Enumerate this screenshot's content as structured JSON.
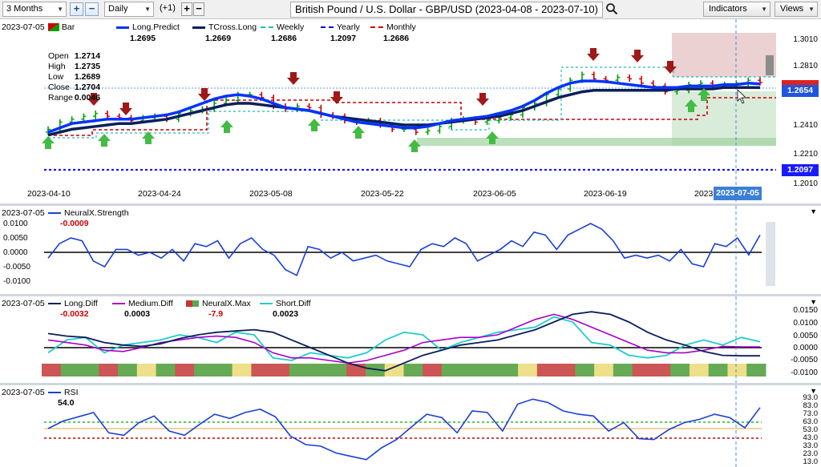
{
  "toolbar": {
    "period": "3 Months",
    "interval": "Daily",
    "offset": "(+1)",
    "title": "British Pound / U.S. Dollar - GBP/USD (2023-04-08 - 2023-07-10)",
    "indicators_label": "Indicators",
    "views_label": "Views"
  },
  "main_pane": {
    "date": "2023-07-05",
    "legend": [
      {
        "name": "Bar",
        "value": "",
        "color": "#00a000"
      },
      {
        "name": "Long.Predict",
        "value": "1.2695",
        "color": "#0033ff"
      },
      {
        "name": "TCross.Long",
        "value": "1.2669",
        "color": "#0a1f5c"
      },
      {
        "name": "Weekly",
        "value": "1.2686",
        "color": "#22bbbb"
      },
      {
        "name": "Yearly",
        "value": "1.2097",
        "color": "#0000cc"
      },
      {
        "name": "Monthly",
        "value": "1.2686",
        "color": "#cc0000"
      }
    ],
    "ohlc": [
      {
        "label": "Open",
        "value": "1.2714"
      },
      {
        "label": "High",
        "value": "1.2735"
      },
      {
        "label": "Low",
        "value": "1.2689"
      },
      {
        "label": "Close",
        "value": "1.2704"
      },
      {
        "label": "Range",
        "value": "0.0046"
      }
    ],
    "y_ticks": [
      "1.3010",
      "1.2810",
      "1.2410",
      "1.2210",
      "1.2010"
    ],
    "price_tags": [
      {
        "label": "1.2654",
        "color": "#2255dd"
      },
      {
        "label": "1.2097",
        "color": "#1a1aff"
      }
    ],
    "x_ticks": [
      "2023-04-10",
      "2023-04-24",
      "2023-05-08",
      "2023-05-22",
      "2023-06-05",
      "2023-06-19",
      "2023-",
      "2023-07-05"
    ]
  },
  "strength_pane": {
    "date": "2023-07-05",
    "name": "NeuralX.Strength",
    "value": "-0.0009",
    "y_ticks": [
      "0.0100",
      "0.0050",
      "0.0000",
      "-0.0050",
      "-0.0100"
    ]
  },
  "diff_pane": {
    "date": "2023-07-05",
    "legend": [
      {
        "name": "Long.Diff",
        "value": "-0.0032",
        "color": "#0a1f5c"
      },
      {
        "name": "Medium.Diff",
        "value": "0.0003",
        "color": "#aa00cc"
      },
      {
        "name": "NeuralX.Max",
        "value": "-7.9",
        "color": "#cc3333"
      },
      {
        "name": "Short.Diff",
        "value": "0.0023",
        "color": "#22cccc"
      }
    ],
    "y_ticks": [
      "0.0150",
      "0.0100",
      "0.0050",
      "0.0000",
      "-0.0050",
      "-0.0100"
    ]
  },
  "rsi_pane": {
    "date": "2023-07-05",
    "name": "RSI",
    "value": "54.0",
    "y_ticks": [
      "93.0",
      "83.0",
      "73.0",
      "63.0",
      "53.0",
      "43.0",
      "33.0",
      "23.0",
      "13.0"
    ]
  },
  "chart_data": [
    {
      "type": "bar",
      "title": "British Pound / U.S. Dollar - GBP/USD (2023-04-08 - 2023-07-10)",
      "ylim": [
        1.201,
        1.301
      ],
      "series": [
        {
          "name": "Bar",
          "values": [
            1.238,
            1.243,
            1.245,
            1.247,
            1.249,
            1.247,
            1.246,
            1.244,
            1.246,
            1.247,
            1.245,
            1.249,
            1.251,
            1.252,
            1.256,
            1.258,
            1.262,
            1.262,
            1.26,
            1.254,
            1.252,
            1.254,
            1.253,
            1.248,
            1.247,
            1.244,
            1.243,
            1.244,
            1.241,
            1.238,
            1.238,
            1.236,
            1.237,
            1.24,
            1.244,
            1.245,
            1.243,
            1.244,
            1.246,
            1.248,
            1.253,
            1.256,
            1.262,
            1.266,
            1.272,
            1.276,
            1.273,
            1.272,
            1.274,
            1.273,
            1.27,
            1.268,
            1.264,
            1.265,
            1.269,
            1.27,
            1.268,
            1.269,
            1.27,
            1.272,
            1.2704
          ]
        },
        {
          "name": "Long.Predict",
          "values": [
            1.236,
            1.239,
            1.242,
            1.243,
            1.244,
            1.245,
            1.245,
            1.245,
            1.246,
            1.247,
            1.248,
            1.25,
            1.253,
            1.256,
            1.259,
            1.261,
            1.262,
            1.261,
            1.259,
            1.256,
            1.253,
            1.252,
            1.251,
            1.249,
            1.247,
            1.245,
            1.243,
            1.242,
            1.241,
            1.24,
            1.239,
            1.239,
            1.24,
            1.242,
            1.244,
            1.245,
            1.246,
            1.247,
            1.249,
            1.251,
            1.254,
            1.258,
            1.263,
            1.267,
            1.27,
            1.2715,
            1.2715,
            1.271,
            1.27,
            1.269,
            1.268,
            1.267,
            1.267,
            1.267,
            1.268,
            1.268,
            1.268,
            1.269,
            1.269,
            1.27,
            1.2695
          ]
        },
        {
          "name": "TCross.Long",
          "values": [
            1.234,
            1.236,
            1.238,
            1.239,
            1.24,
            1.241,
            1.242,
            1.242,
            1.243,
            1.244,
            1.245,
            1.247,
            1.249,
            1.251,
            1.253,
            1.255,
            1.256,
            1.256,
            1.255,
            1.254,
            1.253,
            1.252,
            1.251,
            1.249,
            1.247,
            1.246,
            1.245,
            1.244,
            1.243,
            1.242,
            1.241,
            1.241,
            1.241,
            1.242,
            1.243,
            1.244,
            1.245,
            1.246,
            1.247,
            1.249,
            1.251,
            1.254,
            1.257,
            1.26,
            1.262,
            1.264,
            1.265,
            1.265,
            1.265,
            1.265,
            1.265,
            1.265,
            1.265,
            1.266,
            1.266,
            1.266,
            1.266,
            1.267,
            1.267,
            1.267,
            1.2669
          ]
        },
        {
          "name": "Yearly",
          "values": [
            1.2097
          ]
        }
      ]
    },
    {
      "type": "line",
      "title": "NeuralX.Strength",
      "ylim": [
        -0.012,
        0.012
      ],
      "series": [
        {
          "name": "NeuralX.Strength",
          "values": [
            -0.002,
            0.003,
            0.005,
            0.004,
            -0.003,
            -0.005,
            0.001,
            0.001,
            -0.001,
            0.0,
            -0.002,
            0.001,
            -0.003,
            0.003,
            0.002,
            0.004,
            -0.002,
            0.003,
            0.005,
            0.001,
            -0.001,
            -0.006,
            -0.008,
            0.002,
            0.001,
            -0.002,
            0.0,
            -0.003,
            -0.002,
            -0.001,
            -0.003,
            -0.004,
            -0.005,
            0.001,
            0.003,
            0.002,
            0.005,
            0.003,
            -0.003,
            -0.001,
            0.001,
            0.004,
            0.002,
            0.007,
            0.006,
            0.001,
            0.006,
            0.008,
            0.01,
            0.008,
            0.004,
            -0.002,
            -0.001,
            -0.002,
            -0.001,
            -0.003,
            0.001,
            -0.004,
            -0.005,
            0.003,
            0.002,
            0.005,
            -0.0009,
            0.006
          ]
        }
      ]
    },
    {
      "type": "line",
      "title": "Long.Diff / Medium.Diff / Short.Diff",
      "ylim": [
        -0.011,
        0.017
      ],
      "series": [
        {
          "name": "Long.Diff",
          "values": [
            0.0055,
            0.0045,
            0.004,
            0.002,
            0.001,
            0.0005,
            0.0015,
            0.0035,
            0.005,
            0.006,
            0.0065,
            0.007,
            0.006,
            0.003,
            0.0,
            -0.003,
            -0.006,
            -0.008,
            -0.009,
            -0.006,
            -0.003,
            -0.001,
            0.001,
            0.002,
            0.003,
            0.005,
            0.007,
            0.01,
            0.013,
            0.014,
            0.013,
            0.01,
            0.006,
            0.003,
            0.001,
            -0.0015,
            -0.003,
            -0.0032,
            -0.0032
          ]
        },
        {
          "name": "Medium.Diff",
          "values": [
            0.003,
            0.002,
            0.001,
            -0.001,
            -0.0015,
            0.0,
            0.002,
            0.003,
            0.004,
            0.0045,
            0.004,
            0.002,
            -0.002,
            -0.004,
            -0.004,
            -0.005,
            -0.006,
            -0.005,
            -0.003,
            -0.001,
            0.002,
            0.003,
            0.004,
            0.004,
            0.005,
            0.008,
            0.011,
            0.013,
            0.011,
            0.008,
            0.005,
            0.002,
            -0.001,
            -0.002,
            -0.002,
            -0.001,
            0.0005,
            0.0003,
            0.0003
          ]
        },
        {
          "name": "Short.Diff",
          "values": [
            -0.002,
            0.003,
            0.004,
            -0.002,
            0.001,
            0.002,
            0.003,
            0.005,
            0.004,
            0.002,
            0.006,
            0.005,
            -0.004,
            -0.005,
            -0.002,
            -0.003,
            -0.004,
            -0.002,
            0.003,
            0.006,
            0.005,
            -0.001,
            0.002,
            0.004,
            0.006,
            0.007,
            0.008,
            0.012,
            0.01,
            0.002,
            0.001,
            -0.003,
            -0.004,
            -0.003,
            0.001,
            0.003,
            0.001,
            0.004,
            0.0023
          ]
        }
      ]
    },
    {
      "type": "line",
      "title": "RSI",
      "ylim": [
        13,
        93
      ],
      "series": [
        {
          "name": "RSI",
          "values": [
            53,
            62,
            67,
            72,
            48,
            45,
            60,
            68,
            50,
            45,
            58,
            70,
            65,
            72,
            76,
            67,
            44,
            34,
            32,
            24,
            20,
            16,
            30,
            40,
            55,
            70,
            66,
            48,
            74,
            72,
            50,
            82,
            88,
            84,
            74,
            70,
            68,
            50,
            60,
            41,
            40,
            52,
            60,
            64,
            70,
            66,
            54,
            78
          ]
        }
      ]
    }
  ]
}
